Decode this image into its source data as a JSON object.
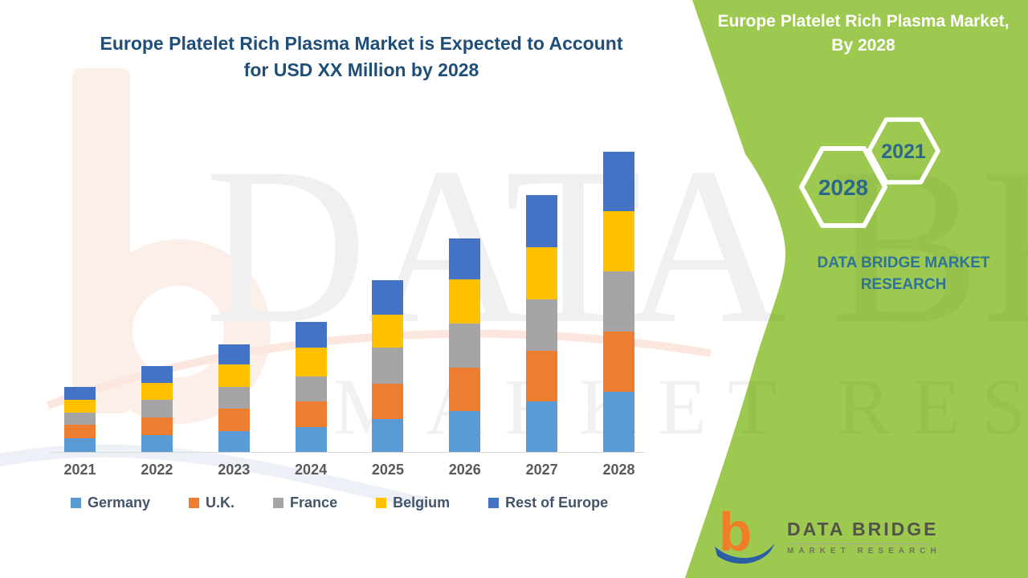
{
  "chart": {
    "title_line1": "Europe Platelet Rich Plasma Market is Expected to Account",
    "title_line2": "for USD XX Million by 2028",
    "title_color": "#1F4E79"
  },
  "chart_data": {
    "type": "bar",
    "stacked": true,
    "title": "Europe Platelet Rich Plasma Market is Expected to Account for USD XX Million by 2028",
    "xlabel": "",
    "ylabel": "",
    "value_axis_labeled": false,
    "units": "USD Million (figure shows values as 'XX'; series values below are relative estimates read from bar heights)",
    "legend_position": "bottom",
    "grid": false,
    "categories": [
      "2021",
      "2022",
      "2023",
      "2024",
      "2025",
      "2026",
      "2027",
      "2028"
    ],
    "series": [
      {
        "name": "Germany",
        "color": "#5B9BD5",
        "values": [
          17,
          21,
          26,
          31,
          41,
          51,
          63,
          75
        ]
      },
      {
        "name": "U.K.",
        "color": "#ED7D31",
        "values": [
          17,
          22,
          28,
          32,
          44,
          54,
          63,
          75
        ]
      },
      {
        "name": "France",
        "color": "#A5A5A5",
        "values": [
          15,
          22,
          27,
          31,
          45,
          55,
          64,
          75
        ]
      },
      {
        "name": "Belgium",
        "color": "#FFC000",
        "values": [
          16,
          21,
          28,
          36,
          41,
          55,
          65,
          75
        ]
      },
      {
        "name": "Rest of Europe",
        "color": "#4472C4",
        "values": [
          16,
          21,
          25,
          32,
          43,
          51,
          65,
          74
        ]
      }
    ],
    "stack_totals_relative": [
      81,
      107,
      134,
      162,
      214,
      266,
      320,
      374
    ]
  },
  "legend": {
    "items": [
      {
        "label": "Germany",
        "color": "#5B9BD5"
      },
      {
        "label": "U.K.",
        "color": "#ED7D31"
      },
      {
        "label": "France",
        "color": "#A5A5A5"
      },
      {
        "label": "Belgium",
        "color": "#FFC000"
      },
      {
        "label": "Rest of Europe",
        "color": "#4472C4"
      }
    ]
  },
  "side_panel": {
    "background_color": "#9EC951",
    "title_line1": "Europe Platelet Rich Plasma Market,",
    "title_line2": "By 2028",
    "hexagon_large_label": "2028",
    "hexagon_small_label": "2021",
    "hexagon_text_color": "#2B688B",
    "brand_line1": "DATA BRIDGE MARKET",
    "brand_line2": "RESEARCH",
    "brand_text_color": "#2F7496"
  },
  "logo": {
    "title": "DATA BRIDGE",
    "subtitle": "MARKET RESEARCH",
    "mark_b_color": "#F07E26",
    "mark_swoosh_color": "#2B5DA7"
  },
  "watermark": {
    "row1": "DATA BRIDGE",
    "row2": "MARKET RESEARCH"
  }
}
